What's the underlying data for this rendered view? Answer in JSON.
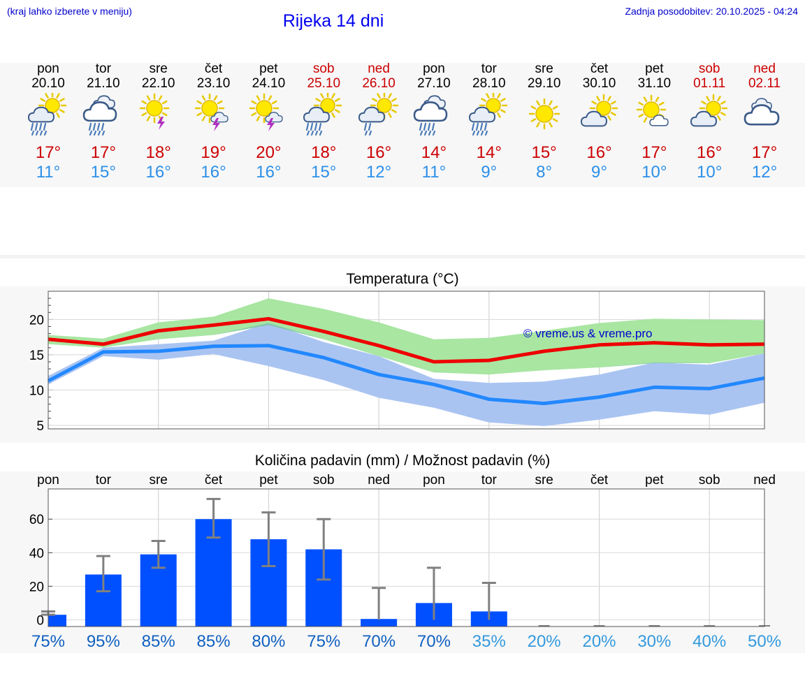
{
  "header": {
    "hint": "(kraj lahko izberete v meniju)",
    "title": "Rijeka 14 dni",
    "updated": "Zadnja posodobitev: 20.10.2025 - 04:24"
  },
  "days": [
    {
      "name": "pon",
      "date": "20.10",
      "weekend": false,
      "icon": "sun-cloud-rain-icon",
      "max": "17°",
      "min": "11°"
    },
    {
      "name": "tor",
      "date": "21.10",
      "weekend": false,
      "icon": "cloud-rain-icon",
      "max": "17°",
      "min": "15°"
    },
    {
      "name": "sre",
      "date": "22.10",
      "weekend": false,
      "icon": "sun-thunder-icon",
      "max": "18°",
      "min": "16°"
    },
    {
      "name": "čet",
      "date": "23.10",
      "weekend": false,
      "icon": "sun-cloud-thunder-icon",
      "max": "19°",
      "min": "16°"
    },
    {
      "name": "pet",
      "date": "24.10",
      "weekend": false,
      "icon": "sun-cloud-thunder-icon",
      "max": "20°",
      "min": "16°"
    },
    {
      "name": "sob",
      "date": "25.10",
      "weekend": true,
      "icon": "sun-cloud-rain-icon",
      "max": "18°",
      "min": "15°"
    },
    {
      "name": "ned",
      "date": "26.10",
      "weekend": true,
      "icon": "sun-cloud-drizzle-icon",
      "max": "16°",
      "min": "12°"
    },
    {
      "name": "pon",
      "date": "27.10",
      "weekend": false,
      "icon": "cloud-rain-icon",
      "max": "14°",
      "min": "11°"
    },
    {
      "name": "tor",
      "date": "28.10",
      "weekend": false,
      "icon": "sun-cloud-rain-icon",
      "max": "14°",
      "min": "9°"
    },
    {
      "name": "sre",
      "date": "29.10",
      "weekend": false,
      "icon": "sun-icon",
      "max": "15°",
      "min": "8°"
    },
    {
      "name": "čet",
      "date": "30.10",
      "weekend": false,
      "icon": "sun-cloud-icon",
      "max": "16°",
      "min": "9°"
    },
    {
      "name": "pet",
      "date": "31.10",
      "weekend": false,
      "icon": "sun-small-cloud-icon",
      "max": "17°",
      "min": "10°"
    },
    {
      "name": "sob",
      "date": "01.11",
      "weekend": true,
      "icon": "sun-cloud-icon",
      "max": "16°",
      "min": "10°"
    },
    {
      "name": "ned",
      "date": "02.11",
      "weekend": true,
      "icon": "cloud-icon",
      "max": "17°",
      "min": "12°"
    }
  ],
  "colors": {
    "max_line": "#ee0000",
    "min_line": "#2288ff",
    "max_band": "#a8e6a2",
    "min_band": "#aac4f2",
    "overlap_band": "#7fc7a8",
    "bar": "#0050ff",
    "error_bar": "#808080",
    "pct_dark": "#1060c0",
    "pct_light": "#3399dd"
  },
  "watermark": "© vreme.us & vreme.pro",
  "chart_data": [
    {
      "type": "line",
      "title": "Temperatura (°C)",
      "x": [
        0,
        1,
        2,
        3,
        4,
        5,
        6,
        7,
        8,
        9,
        10,
        11,
        12,
        13
      ],
      "ylim": [
        4.5,
        24
      ],
      "yticks": [
        5,
        10,
        15,
        20
      ],
      "grid": true,
      "series": [
        {
          "role": "max",
          "values": [
            17.2,
            16.5,
            18.4,
            19.2,
            20.1,
            18.3,
            16.3,
            14.0,
            14.2,
            15.5,
            16.4,
            16.7,
            16.4,
            16.5
          ],
          "band_low": [
            16.5,
            16.0,
            17.2,
            17.8,
            19.2,
            17.2,
            14.8,
            12.5,
            12.2,
            12.8,
            13.2,
            13.8,
            13.8,
            15.2
          ],
          "band_high": [
            17.8,
            17.3,
            19.6,
            20.4,
            23.0,
            21.5,
            19.6,
            17.2,
            17.4,
            18.4,
            19.5,
            20.1,
            20.0,
            19.9
          ]
        },
        {
          "role": "min",
          "values": [
            11.3,
            15.4,
            15.5,
            16.2,
            16.3,
            14.6,
            12.2,
            10.8,
            8.7,
            8.1,
            9.0,
            10.4,
            10.2,
            11.7
          ],
          "band_low": [
            10.8,
            14.8,
            14.3,
            15.1,
            13.4,
            11.4,
            8.9,
            7.5,
            5.4,
            4.9,
            5.8,
            7.0,
            6.5,
            8.2
          ],
          "band_high": [
            12.0,
            16.0,
            16.5,
            17.0,
            19.5,
            16.8,
            14.8,
            11.6,
            11.0,
            11.2,
            12.2,
            13.9,
            13.6,
            15.2
          ]
        }
      ]
    },
    {
      "type": "bar",
      "title": "Količina padavin (mm) / Možnost padavin (%)",
      "categories": [
        "pon",
        "tor",
        "sre",
        "čet",
        "pet",
        "sob",
        "ned",
        "pon",
        "tor",
        "sre",
        "čet",
        "pet",
        "sob",
        "ned"
      ],
      "ylim": [
        -4,
        78
      ],
      "yticks": [
        0,
        20,
        40,
        60
      ],
      "grid": true,
      "values": [
        3,
        27,
        39,
        60,
        48,
        42,
        0.5,
        10,
        5,
        0,
        0,
        0,
        0,
        0
      ],
      "err_low": [
        3,
        17,
        31,
        49,
        32,
        24,
        0,
        0,
        0,
        0,
        0,
        0,
        0,
        0
      ],
      "err_high": [
        5,
        38,
        47,
        72,
        64,
        60,
        19,
        31,
        22,
        0,
        0,
        0,
        0,
        0
      ],
      "probability": [
        "75%",
        "95%",
        "85%",
        "85%",
        "80%",
        "75%",
        "70%",
        "70%",
        "35%",
        "20%",
        "20%",
        "30%",
        "40%",
        "50%"
      ]
    }
  ]
}
